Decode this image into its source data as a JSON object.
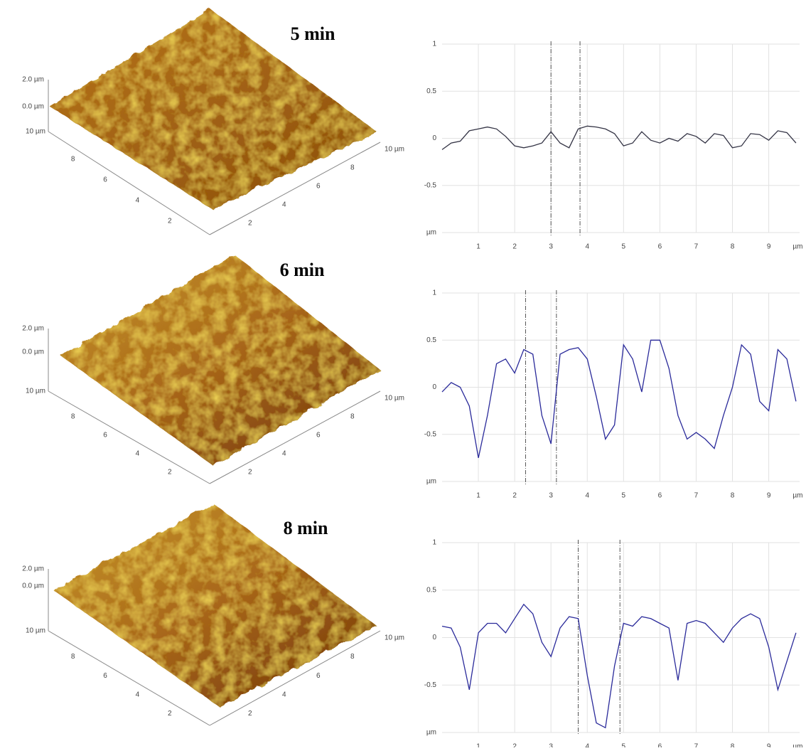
{
  "surfaces": [
    {
      "title": "5 min",
      "z_ticks": [
        "2.0 µm",
        "0.0 µm"
      ],
      "left_ticks": [
        "10 µm",
        "8",
        "6",
        "4",
        "2"
      ],
      "right_ticks": [
        "2",
        "4",
        "6",
        "8",
        "10 µm"
      ]
    },
    {
      "title": "6 min",
      "z_ticks": [
        "2.0 µm",
        "0.0 µm"
      ],
      "left_ticks": [
        "10 µm",
        "8",
        "6",
        "4",
        "2"
      ],
      "right_ticks": [
        "2",
        "4",
        "6",
        "8",
        "10 µm"
      ]
    },
    {
      "title": "8 min",
      "z_ticks": [
        "2.0 µm",
        "0.0 µm"
      ],
      "left_ticks": [
        "10 µm",
        "8",
        "6",
        "4",
        "2"
      ],
      "right_ticks": [
        "2",
        "4",
        "6",
        "8",
        "10 µm"
      ]
    }
  ],
  "chart_data": [
    {
      "type": "line",
      "color": "#333344",
      "grid": true,
      "xlim": [
        0,
        9.85
      ],
      "ylim": [
        -1,
        1
      ],
      "xticks": [
        1,
        2,
        3,
        4,
        5,
        6,
        7,
        8,
        9,
        {
          "value": 9.8,
          "label": "µm"
        }
      ],
      "yticks": [
        1,
        0.5,
        0,
        -0.5,
        {
          "value": -1,
          "label": "µm"
        }
      ],
      "markers": [
        3.0,
        3.8
      ],
      "x": [
        0,
        0.25,
        0.5,
        0.75,
        1,
        1.25,
        1.5,
        1.75,
        2,
        2.25,
        2.5,
        2.75,
        3,
        3.25,
        3.5,
        3.75,
        4,
        4.25,
        4.5,
        4.75,
        5,
        5.25,
        5.5,
        5.75,
        6,
        6.25,
        6.5,
        6.75,
        7,
        7.25,
        7.5,
        7.75,
        8,
        8.25,
        8.5,
        8.75,
        9,
        9.25,
        9.5,
        9.75
      ],
      "values": [
        -0.12,
        -0.05,
        -0.03,
        0.08,
        0.1,
        0.12,
        0.1,
        0.02,
        -0.08,
        -0.1,
        -0.08,
        -0.05,
        0.07,
        -0.05,
        -0.1,
        0.1,
        0.13,
        0.12,
        0.1,
        0.05,
        -0.08,
        -0.05,
        0.07,
        -0.02,
        -0.05,
        0,
        -0.03,
        0.05,
        0.02,
        -0.05,
        0.05,
        0.03,
        -0.1,
        -0.08,
        0.05,
        0.04,
        -0.02,
        0.08,
        0.06,
        -0.05
      ]
    },
    {
      "type": "line",
      "color": "#2a2a9a",
      "grid": true,
      "xlim": [
        0,
        9.85
      ],
      "ylim": [
        -1,
        1
      ],
      "xticks": [
        1,
        2,
        3,
        4,
        5,
        6,
        7,
        8,
        9,
        {
          "value": 9.8,
          "label": "µm"
        }
      ],
      "yticks": [
        1,
        0.5,
        0,
        -0.5,
        {
          "value": -1,
          "label": "µm"
        }
      ],
      "markers": [
        2.3,
        3.15
      ],
      "x": [
        0,
        0.25,
        0.5,
        0.75,
        1,
        1.25,
        1.5,
        1.75,
        2,
        2.25,
        2.5,
        2.75,
        3,
        3.25,
        3.5,
        3.75,
        4,
        4.25,
        4.5,
        4.75,
        5,
        5.25,
        5.5,
        5.75,
        6,
        6.25,
        6.5,
        6.75,
        7,
        7.25,
        7.5,
        7.75,
        8,
        8.25,
        8.5,
        8.75,
        9,
        9.25,
        9.5,
        9.75
      ],
      "values": [
        -0.05,
        0.05,
        0,
        -0.2,
        -0.75,
        -0.3,
        0.25,
        0.3,
        0.15,
        0.4,
        0.35,
        -0.3,
        -0.6,
        0.35,
        0.4,
        0.42,
        0.3,
        -0.1,
        -0.55,
        -0.4,
        0.45,
        0.3,
        -0.05,
        0.5,
        0.5,
        0.2,
        -0.3,
        -0.55,
        -0.48,
        -0.55,
        -0.65,
        -0.3,
        0,
        0.45,
        0.35,
        -0.15,
        -0.25,
        0.4,
        0.3,
        -0.15
      ]
    },
    {
      "type": "line",
      "color": "#2a2a9a",
      "grid": true,
      "xlim": [
        0,
        9.85
      ],
      "ylim": [
        -1,
        1
      ],
      "xticks": [
        1,
        2,
        3,
        4,
        5,
        6,
        7,
        8,
        9,
        {
          "value": 9.8,
          "label": "µm"
        }
      ],
      "yticks": [
        1,
        0.5,
        0,
        -0.5,
        {
          "value": -1,
          "label": "µm"
        }
      ],
      "markers": [
        3.75,
        4.9
      ],
      "x": [
        0,
        0.25,
        0.5,
        0.75,
        1,
        1.25,
        1.5,
        1.75,
        2,
        2.25,
        2.5,
        2.75,
        3,
        3.25,
        3.5,
        3.75,
        4,
        4.25,
        4.5,
        4.75,
        5,
        5.25,
        5.5,
        5.75,
        6,
        6.25,
        6.5,
        6.75,
        7,
        7.25,
        7.5,
        7.75,
        8,
        8.25,
        8.5,
        8.75,
        9,
        9.25,
        9.5,
        9.75
      ],
      "values": [
        0.12,
        0.1,
        -0.1,
        -0.55,
        0.05,
        0.15,
        0.15,
        0.05,
        0.2,
        0.35,
        0.25,
        -0.05,
        -0.2,
        0.1,
        0.22,
        0.2,
        -0.4,
        -0.9,
        -0.95,
        -0.3,
        0.15,
        0.12,
        0.22,
        0.2,
        0.15,
        0.1,
        -0.45,
        0.15,
        0.18,
        0.15,
        0.05,
        -0.05,
        0.1,
        0.2,
        0.25,
        0.2,
        -0.1,
        -0.55,
        -0.25,
        0.05
      ]
    }
  ]
}
